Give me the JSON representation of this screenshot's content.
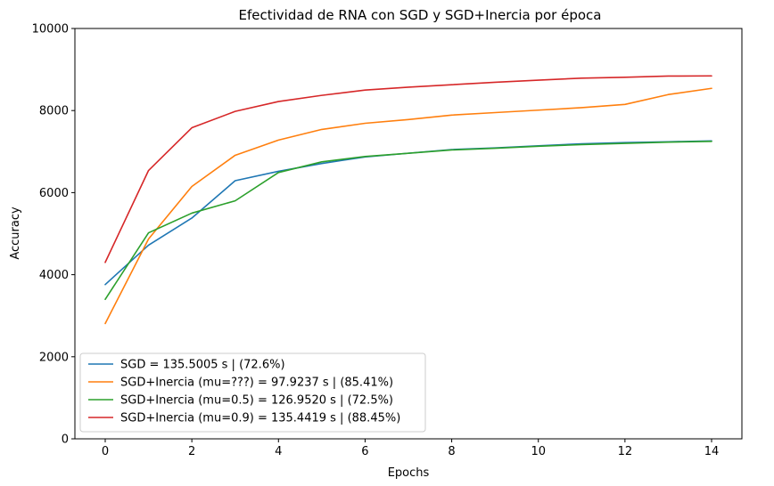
{
  "chart_data": {
    "type": "line",
    "title": "Efectividad de RNA con SGD y SGD+Inercia por época",
    "xlabel": "Epochs",
    "ylabel": "Accuracy",
    "xlim": [
      -0.7,
      14.7
    ],
    "ylim": [
      0,
      10000
    ],
    "xticks": [
      0,
      2,
      4,
      6,
      8,
      10,
      12,
      14
    ],
    "yticks": [
      0,
      2000,
      4000,
      6000,
      8000,
      10000
    ],
    "grid": false,
    "legend_position": "lower-left",
    "x": [
      0,
      1,
      2,
      3,
      4,
      5,
      6,
      7,
      8,
      9,
      10,
      11,
      12,
      13,
      14
    ],
    "series": [
      {
        "name": "SGD = 135.5005 s | (72.6%)",
        "color": "#1f77b4",
        "values": [
          3760,
          4720,
          5380,
          6290,
          6520,
          6710,
          6870,
          6960,
          7050,
          7090,
          7140,
          7190,
          7220,
          7240,
          7260
        ]
      },
      {
        "name": "SGD+Inercia (mu=???) = 97.9237 s | (85.41%)",
        "color": "#ff7f0e",
        "values": [
          2810,
          4870,
          6150,
          6910,
          7280,
          7540,
          7690,
          7780,
          7890,
          7950,
          8010,
          8070,
          8150,
          8390,
          8541
        ]
      },
      {
        "name": "SGD+Inercia (mu=0.5) = 126.9520 s | (72.5%)",
        "color": "#2ca02c",
        "values": [
          3400,
          5020,
          5500,
          5800,
          6490,
          6750,
          6880,
          6960,
          7040,
          7080,
          7130,
          7170,
          7200,
          7230,
          7250
        ]
      },
      {
        "name": "SGD+Inercia (mu=0.9) = 135.4419 s | (88.45%)",
        "color": "#d62728",
        "values": [
          4300,
          6540,
          7580,
          7980,
          8220,
          8370,
          8500,
          8570,
          8630,
          8690,
          8740,
          8790,
          8810,
          8840,
          8845
        ]
      }
    ]
  }
}
